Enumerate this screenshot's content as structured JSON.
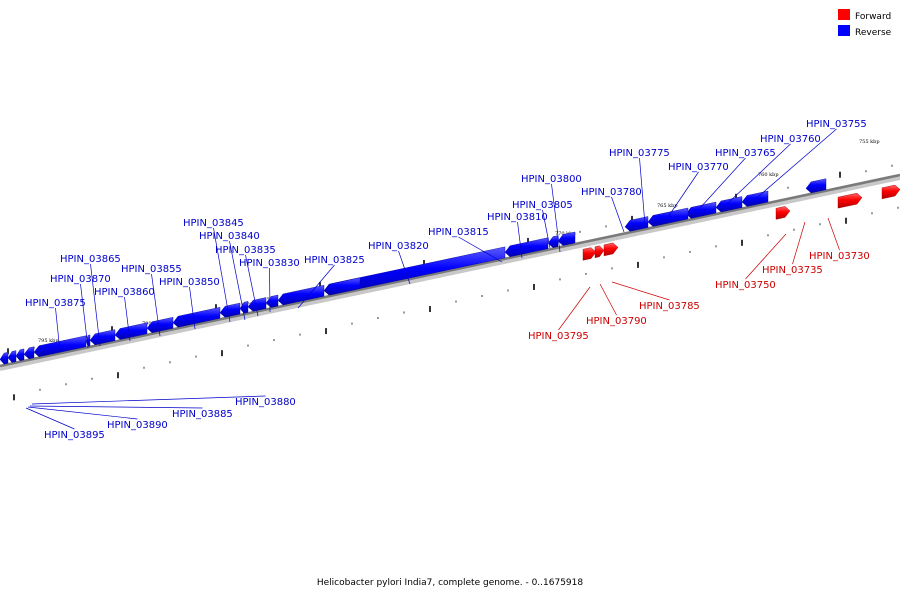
{
  "legend": [
    {
      "label": "Forward",
      "color": "#ff0000"
    },
    {
      "label": "Reverse",
      "color": "#0000ff"
    }
  ],
  "caption": "Helicobacter pylori India7, complete genome. - 0..1675918",
  "scale_labels": [
    "795 kbp",
    "790 kbp",
    "785 kbp",
    "780 kbp",
    "775 kbp",
    "770 kbp",
    "765 kbp",
    "760 kbp",
    "755 kbp"
  ],
  "genes": [
    {
      "label": "HPIN_03730",
      "strand": "forward"
    },
    {
      "label": "HPIN_03735",
      "strand": "forward"
    },
    {
      "label": "HPIN_03750",
      "strand": "forward"
    },
    {
      "label": "HPIN_03755",
      "strand": "reverse"
    },
    {
      "label": "HPIN_03760",
      "strand": "reverse"
    },
    {
      "label": "HPIN_03765",
      "strand": "reverse"
    },
    {
      "label": "HPIN_03770",
      "strand": "reverse"
    },
    {
      "label": "HPIN_03775",
      "strand": "reverse"
    },
    {
      "label": "HPIN_03780",
      "strand": "reverse"
    },
    {
      "label": "HPIN_03785",
      "strand": "forward"
    },
    {
      "label": "HPIN_03790",
      "strand": "forward"
    },
    {
      "label": "HPIN_03795",
      "strand": "forward"
    },
    {
      "label": "HPIN_03800",
      "strand": "reverse"
    },
    {
      "label": "HPIN_03805",
      "strand": "reverse"
    },
    {
      "label": "HPIN_03810",
      "strand": "reverse"
    },
    {
      "label": "HPIN_03815",
      "strand": "reverse"
    },
    {
      "label": "HPIN_03820",
      "strand": "reverse"
    },
    {
      "label": "HPIN_03825",
      "strand": "reverse"
    },
    {
      "label": "HPIN_03830",
      "strand": "reverse"
    },
    {
      "label": "HPIN_03835",
      "strand": "reverse"
    },
    {
      "label": "HPIN_03840",
      "strand": "reverse"
    },
    {
      "label": "HPIN_03845",
      "strand": "reverse"
    },
    {
      "label": "HPIN_03850",
      "strand": "reverse"
    },
    {
      "label": "HPIN_03855",
      "strand": "reverse"
    },
    {
      "label": "HPIN_03860",
      "strand": "reverse"
    },
    {
      "label": "HPIN_03865",
      "strand": "reverse"
    },
    {
      "label": "HPIN_03870",
      "strand": "reverse"
    },
    {
      "label": "HPIN_03875",
      "strand": "reverse"
    },
    {
      "label": "HPIN_03880",
      "strand": "reverse"
    },
    {
      "label": "HPIN_03885",
      "strand": "reverse"
    },
    {
      "label": "HPIN_03890",
      "strand": "reverse"
    },
    {
      "label": "HPIN_03895",
      "strand": "reverse"
    }
  ]
}
